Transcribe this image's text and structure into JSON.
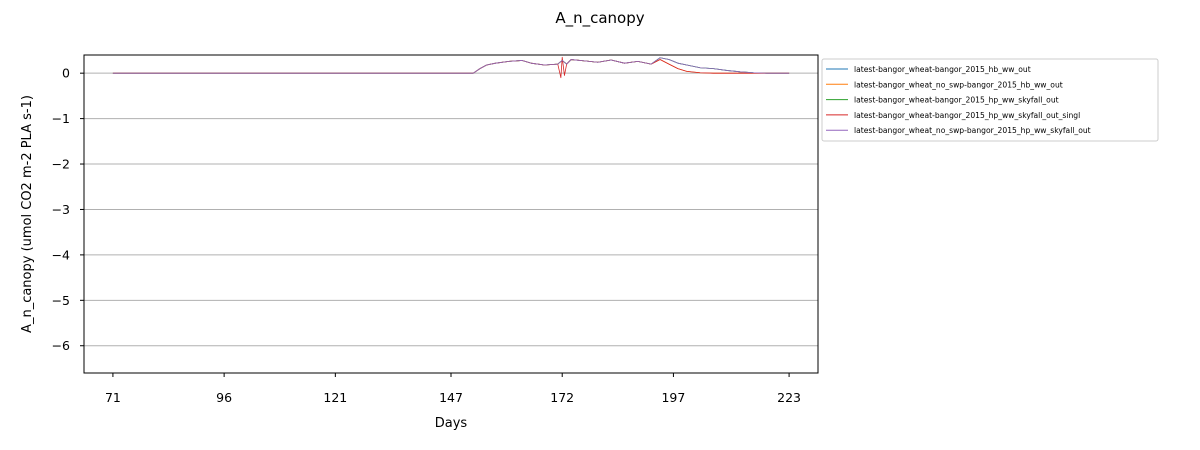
{
  "chart_data": {
    "type": "line",
    "title": "A_n_canopy",
    "xlabel": "Days",
    "ylabel": "A_n_canopy (umol CO2 m-2 PLA s-1)",
    "xlim": [
      64.5,
      229.5
    ],
    "ylim": [
      -6.6,
      0.4
    ],
    "xticks": [
      71,
      96,
      121,
      147,
      172,
      197,
      223
    ],
    "xtick_labels": [
      "71",
      "96",
      "121",
      "147",
      "172",
      "197",
      "223"
    ],
    "yticks": [
      0,
      -1,
      -2,
      -3,
      -4,
      -5,
      -6
    ],
    "ytick_labels": [
      "0",
      "−1",
      "−2",
      "−3",
      "−4",
      "−5",
      "−6"
    ],
    "grid": "horizontal",
    "legend_position": "outside-right-top",
    "series": [
      {
        "name": "latest-bangor_wheat-bangor_2015_hb_ww_out",
        "color": "#1f77b4",
        "x": [
          71,
          100,
          130,
          152,
          153.5,
          155,
          157,
          160,
          163,
          165,
          168,
          171,
          172,
          173,
          174,
          177,
          180,
          183,
          186,
          189,
          192,
          194,
          196,
          198,
          200,
          203,
          206,
          209,
          212,
          215,
          218,
          220,
          223
        ],
        "y": [
          0,
          0,
          0,
          0,
          0.1,
          0.18,
          0.22,
          0.26,
          0.28,
          0.22,
          0.18,
          0.2,
          0.28,
          0.2,
          0.3,
          0.27,
          0.24,
          0.29,
          0.22,
          0.26,
          0.2,
          0.34,
          0.3,
          0.22,
          0.18,
          0.12,
          0.1,
          0.06,
          0.03,
          0.01,
          0,
          0,
          0
        ]
      },
      {
        "name": "latest-bangor_wheat_no_swp-bangor_2015_hb_ww_out",
        "color": "#ff7f0e",
        "x": [
          71,
          100,
          130,
          152,
          153.5,
          155,
          157,
          160,
          163,
          165,
          168,
          171,
          172,
          173,
          174,
          177,
          180,
          183,
          186,
          189,
          192,
          194,
          196,
          198,
          200,
          203,
          206,
          209,
          212,
          215,
          218,
          220,
          223
        ],
        "y": [
          0,
          0,
          0,
          0,
          0.1,
          0.18,
          0.22,
          0.26,
          0.28,
          0.22,
          0.18,
          0.2,
          0.28,
          0.2,
          0.3,
          0.27,
          0.24,
          0.29,
          0.22,
          0.26,
          0.2,
          0.3,
          0.2,
          0.1,
          0.04,
          0.01,
          0,
          0,
          0,
          0,
          0,
          0,
          0
        ]
      },
      {
        "name": "latest-bangor_wheat-bangor_2015_hp_ww_skyfall_out",
        "color": "#2ca02c",
        "x": [
          71,
          100,
          130,
          152,
          153.5,
          155,
          157,
          160,
          163,
          165,
          168,
          171,
          172,
          173,
          174,
          177,
          180,
          183,
          186,
          189,
          192,
          194,
          196,
          198,
          200,
          203,
          206,
          209,
          212,
          215,
          218,
          220,
          223
        ],
        "y": [
          0,
          0,
          0,
          0,
          0.1,
          0.18,
          0.22,
          0.26,
          0.28,
          0.22,
          0.18,
          0.2,
          0.28,
          0.2,
          0.3,
          0.27,
          0.24,
          0.29,
          0.22,
          0.26,
          0.2,
          0.34,
          0.3,
          0.22,
          0.18,
          0.12,
          0.1,
          0.06,
          0.03,
          0.01,
          0,
          0,
          0
        ]
      },
      {
        "name": "latest-bangor_wheat-bangor_2015_hp_ww_skyfall_out_singl",
        "color": "#d62728",
        "x": [
          71,
          100,
          130,
          152,
          153.5,
          155,
          157,
          160,
          163,
          165,
          168,
          171,
          171.7,
          172,
          172.5,
          173,
          174,
          177,
          180,
          183,
          186,
          189,
          192,
          194,
          196,
          198,
          200,
          203,
          206,
          209,
          212,
          215,
          218,
          220,
          223
        ],
        "y": [
          0,
          0,
          0,
          0,
          0.1,
          0.18,
          0.22,
          0.26,
          0.28,
          0.22,
          0.18,
          0.2,
          -0.1,
          0.35,
          -0.05,
          0.2,
          0.3,
          0.27,
          0.24,
          0.29,
          0.22,
          0.26,
          0.2,
          0.3,
          0.2,
          0.1,
          0.04,
          0.01,
          0,
          0,
          0,
          0,
          0,
          0,
          0
        ]
      },
      {
        "name": "latest-bangor_wheat_no_swp-bangor_2015_hp_ww_skyfall_out",
        "color": "#9467bd",
        "x": [
          71,
          100,
          130,
          152,
          153.5,
          155,
          157,
          160,
          163,
          165,
          168,
          171,
          172,
          173,
          174,
          177,
          180,
          183,
          186,
          189,
          192,
          194,
          196,
          198,
          200,
          203,
          206,
          209,
          212,
          215,
          218,
          220,
          223
        ],
        "y": [
          0,
          0,
          0,
          0,
          0.1,
          0.18,
          0.22,
          0.26,
          0.28,
          0.22,
          0.18,
          0.2,
          0.28,
          0.2,
          0.3,
          0.27,
          0.24,
          0.29,
          0.22,
          0.26,
          0.2,
          0.34,
          0.3,
          0.22,
          0.18,
          0.12,
          0.1,
          0.06,
          0.03,
          0.01,
          0,
          0,
          0
        ]
      }
    ]
  }
}
